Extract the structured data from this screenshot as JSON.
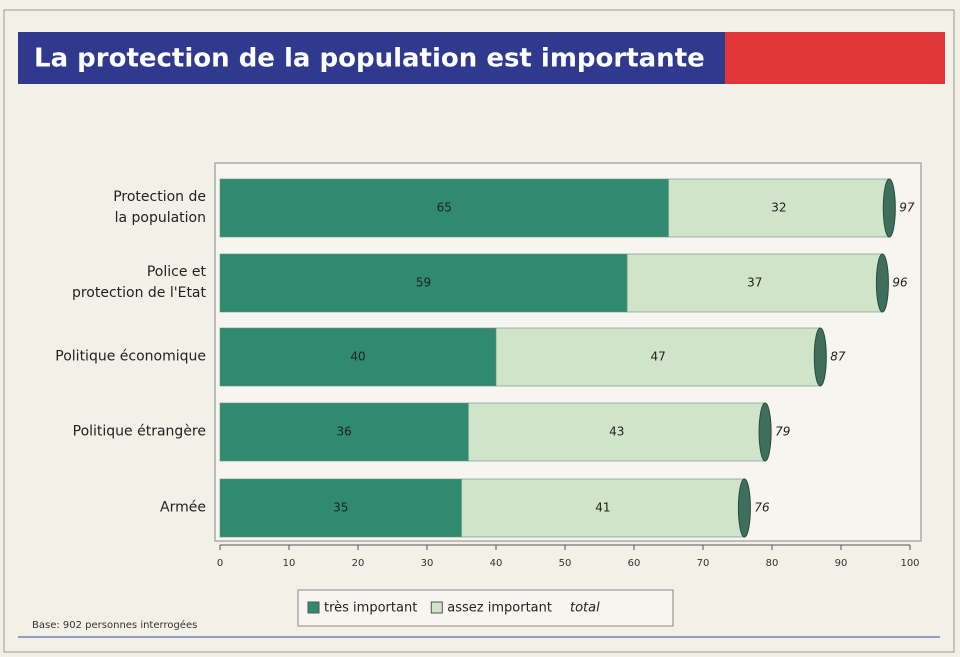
{
  "chart_data": {
    "type": "stacked-bar-horizontal",
    "title": "La protection de la population est importante",
    "categories": [
      "Protection de\nla population",
      "Police et\nprotection de l'Etat",
      "Politique économique",
      "Politique étrangère",
      "Armée"
    ],
    "series": [
      {
        "name": "très important",
        "color": "#2f8a70",
        "values": [
          65,
          59,
          40,
          36,
          35
        ]
      },
      {
        "name": "assez important",
        "color": "#cfe4c9",
        "values": [
          32,
          37,
          47,
          43,
          41
        ]
      }
    ],
    "totals": {
      "name": "total",
      "values": [
        97,
        96,
        87,
        79,
        76
      ]
    },
    "xlim": [
      0,
      100
    ],
    "xticks": [
      0,
      10,
      20,
      30,
      40,
      50,
      60,
      70,
      80,
      90,
      100
    ],
    "note": "Base: 902 personnes interrogées"
  }
}
